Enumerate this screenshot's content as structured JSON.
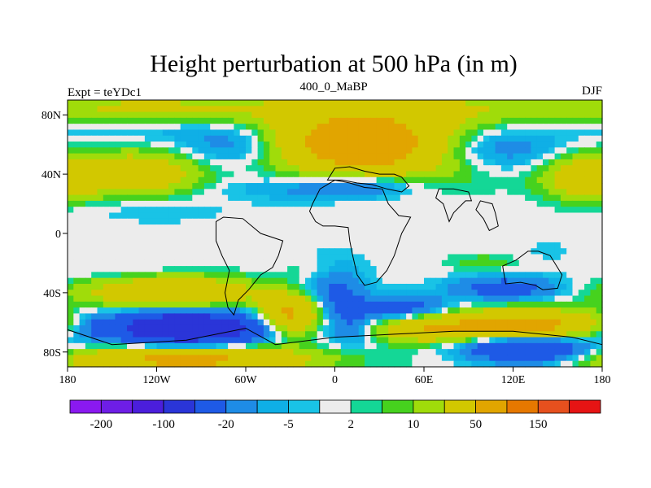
{
  "chart_data": {
    "type": "heatmap",
    "title": "Height perturbation at 500 hPa (in m)",
    "left_label": "Expt = teYDc1",
    "center_label": "400_0_MaBP",
    "right_label": "DJF",
    "x_ticks": [
      "180",
      "120W",
      "60W",
      "0",
      "60E",
      "120E",
      "180"
    ],
    "y_ticks": [
      "80N",
      "40N",
      "0",
      "40S",
      "80S"
    ],
    "xlim": [
      -180,
      180
    ],
    "ylim": [
      -90,
      90
    ],
    "colorbar": {
      "labels": [
        "-200",
        "-100",
        "-20",
        "-5",
        "2",
        "10",
        "50",
        "150"
      ],
      "colors": [
        "#8a19f0",
        "#6e1ee6",
        "#4b1edc",
        "#2a35d8",
        "#1e5ae6",
        "#1e8ce6",
        "#0fafe6",
        "#19c3e6",
        "#ececec",
        "#14d796",
        "#46d21e",
        "#a0dc0a",
        "#d2c800",
        "#e1a500",
        "#e67800",
        "#e6501e",
        "#e61414"
      ],
      "level_values": [
        -200,
        -150,
        -100,
        -50,
        -20,
        -10,
        -5,
        -2,
        2,
        5,
        10,
        20,
        50,
        100,
        150,
        200
      ]
    },
    "grid": false,
    "legend": "colorbar-bottom",
    "blobs": [
      {
        "lon": 20,
        "lat": 60,
        "dlon": 80,
        "dlat": 22,
        "amp": 85
      },
      {
        "lon": 50,
        "lat": 85,
        "dlon": 200,
        "dlat": 10,
        "amp": 15
      },
      {
        "lon": -130,
        "lat": 85,
        "dlon": 60,
        "dlat": 10,
        "amp": 15
      },
      {
        "lon": -60,
        "lat": 60,
        "dlon": 42,
        "dlat": 15,
        "amp": -35
      },
      {
        "lon": 95,
        "lat": 58,
        "dlon": 52,
        "dlat": 16,
        "amp": -38
      },
      {
        "lon": -30,
        "lat": 40,
        "dlon": 45,
        "dlat": 18,
        "amp": -10
      },
      {
        "lon": -20,
        "lat": 30,
        "dlon": 60,
        "dlat": 7,
        "amp": -8
      },
      {
        "lon": 20,
        "lat": 33,
        "dlon": 40,
        "dlat": 9,
        "amp": -22
      },
      {
        "lon": -135,
        "lat": 40,
        "dlon": 38,
        "dlat": 13,
        "amp": 45
      },
      {
        "lon": 170,
        "lat": 38,
        "dlon": 28,
        "dlat": 14,
        "amp": 40
      },
      {
        "lon": -130,
        "lat": 70,
        "dlon": 60,
        "dlat": 8,
        "amp": -7
      },
      {
        "lon": -120,
        "lat": 15,
        "dlon": 45,
        "dlat": 8,
        "amp": -5
      },
      {
        "lon": -110,
        "lat": -40,
        "dlon": 55,
        "dlat": 10,
        "amp": 50
      },
      {
        "lon": -100,
        "lat": -64,
        "dlon": 50,
        "dlat": 11,
        "amp": -100
      },
      {
        "lon": -165,
        "lat": -62,
        "dlon": 18,
        "dlat": 9,
        "amp": -15
      },
      {
        "lon": -30,
        "lat": -55,
        "dlon": 20,
        "dlat": 13,
        "amp": 60
      },
      {
        "lon": -100,
        "lat": -85,
        "dlon": 80,
        "dlat": 9,
        "amp": 60
      },
      {
        "lon": 130,
        "lat": -82,
        "dlon": 60,
        "dlat": 10,
        "amp": 10
      },
      {
        "lon": 125,
        "lat": -62,
        "dlon": 55,
        "dlat": 10,
        "amp": 70
      },
      {
        "lon": 130,
        "lat": -78,
        "dlon": 42,
        "dlat": 10,
        "amp": -65
      },
      {
        "lon": 60,
        "lat": -65,
        "dlon": 32,
        "dlat": 8,
        "amp": 35
      },
      {
        "lon": 115,
        "lat": -37,
        "dlon": 35,
        "dlat": 8,
        "amp": -30
      },
      {
        "lon": 45,
        "lat": -50,
        "dlon": 30,
        "dlat": 8,
        "amp": -30
      },
      {
        "lon": 0,
        "lat": -38,
        "dlon": 20,
        "dlat": 18,
        "amp": -25
      },
      {
        "lon": 10,
        "lat": -62,
        "dlon": 16,
        "dlat": 15,
        "amp": -18
      },
      {
        "lon": -10,
        "lat": -25,
        "dlon": 20,
        "dlat": 7,
        "amp": 8
      },
      {
        "lon": 100,
        "lat": -20,
        "dlon": 25,
        "dlat": 6,
        "amp": 8
      },
      {
        "lon": -150,
        "lat": -25,
        "dlon": 40,
        "dlat": 5,
        "amp": -4
      },
      {
        "lon": 145,
        "lat": -12,
        "dlon": 20,
        "dlat": 8,
        "amp": -3
      }
    ],
    "continents": [
      {
        "name": "Europe-Asia edge",
        "points": [
          [
            -5,
            36
          ],
          [
            0,
            44
          ],
          [
            10,
            45
          ],
          [
            20,
            42
          ],
          [
            30,
            40
          ],
          [
            40,
            40
          ],
          [
            45,
            38
          ],
          [
            50,
            32
          ],
          [
            45,
            28
          ],
          [
            35,
            30
          ],
          [
            25,
            33
          ],
          [
            15,
            34
          ],
          [
            5,
            36
          ]
        ]
      },
      {
        "name": "Africa",
        "points": [
          [
            -17,
            15
          ],
          [
            -15,
            20
          ],
          [
            -10,
            30
          ],
          [
            0,
            36
          ],
          [
            10,
            34
          ],
          [
            20,
            31
          ],
          [
            32,
            30
          ],
          [
            36,
            20
          ],
          [
            43,
            12
          ],
          [
            51,
            11
          ],
          [
            45,
            0
          ],
          [
            40,
            -15
          ],
          [
            35,
            -25
          ],
          [
            28,
            -33
          ],
          [
            20,
            -35
          ],
          [
            15,
            -28
          ],
          [
            12,
            -15
          ],
          [
            10,
            -5
          ],
          [
            9,
            4
          ],
          [
            0,
            5
          ],
          [
            -8,
            5
          ],
          [
            -13,
            8
          ]
        ]
      },
      {
        "name": "South America",
        "points": [
          [
            -80,
            8
          ],
          [
            -75,
            11
          ],
          [
            -62,
            10
          ],
          [
            -50,
            0
          ],
          [
            -35,
            -5
          ],
          [
            -38,
            -15
          ],
          [
            -42,
            -23
          ],
          [
            -50,
            -28
          ],
          [
            -58,
            -38
          ],
          [
            -65,
            -45
          ],
          [
            -68,
            -55
          ],
          [
            -72,
            -50
          ],
          [
            -74,
            -40
          ],
          [
            -71,
            -25
          ],
          [
            -76,
            -15
          ],
          [
            -80,
            -5
          ]
        ]
      },
      {
        "name": "Australia",
        "points": [
          [
            113,
            -22
          ],
          [
            115,
            -34
          ],
          [
            125,
            -33
          ],
          [
            135,
            -35
          ],
          [
            140,
            -38
          ],
          [
            150,
            -37
          ],
          [
            153,
            -28
          ],
          [
            145,
            -15
          ],
          [
            137,
            -12
          ],
          [
            130,
            -12
          ],
          [
            122,
            -18
          ]
        ]
      },
      {
        "name": "India",
        "points": [
          [
            68,
            24
          ],
          [
            73,
            20
          ],
          [
            77,
            8
          ],
          [
            80,
            14
          ],
          [
            88,
            22
          ],
          [
            92,
            22
          ],
          [
            90,
            28
          ],
          [
            80,
            30
          ],
          [
            70,
            30
          ]
        ]
      },
      {
        "name": "SE Asia",
        "points": [
          [
            95,
            16
          ],
          [
            100,
            10
          ],
          [
            104,
            2
          ],
          [
            110,
            5
          ],
          [
            108,
            14
          ],
          [
            106,
            20
          ],
          [
            98,
            22
          ]
        ]
      },
      {
        "name": "Antarctica edge",
        "points": [
          [
            -180,
            -65
          ],
          [
            -150,
            -75
          ],
          [
            -100,
            -72
          ],
          [
            -60,
            -64
          ],
          [
            -40,
            -75
          ],
          [
            0,
            -70
          ],
          [
            40,
            -68
          ],
          [
            80,
            -66
          ],
          [
            120,
            -66
          ],
          [
            160,
            -70
          ],
          [
            180,
            -75
          ]
        ]
      }
    ]
  }
}
